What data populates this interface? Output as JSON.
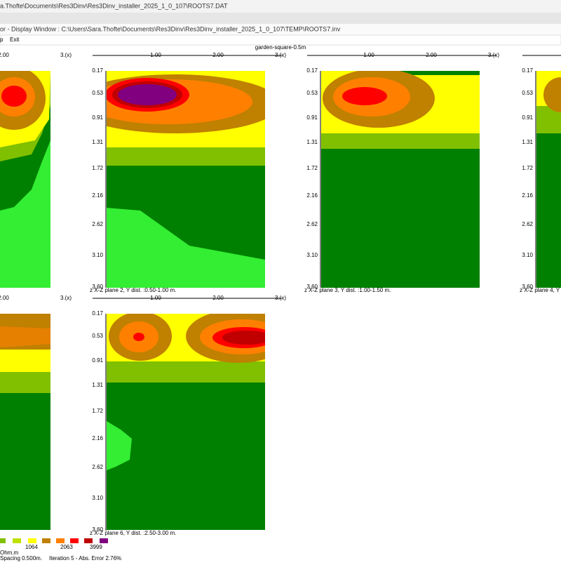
{
  "window": {
    "file_title": "a.Thofte\\Documents\\Res3Dinv\\Res3Dinv_installer_2025_1_0_107\\ROOTS7.DAT",
    "display_title": "or - Display Window : C:\\Users\\Sara.Thofte\\Documents\\Res3Dinv\\Res3Dinv_installer_2025_1_0_107\\TEMP\\ROOTS7.inv",
    "menu": [
      "p",
      "Exit"
    ]
  },
  "figure": {
    "title": "garden-square-0.5m",
    "depth_ticks": [
      "0.17",
      "0.53",
      "0.91",
      "1.31",
      "1.72",
      "2.16",
      "2.62",
      "3.10",
      "3.60"
    ],
    "panels": [
      {
        "x_ticks": [
          "2.00",
          "3.(x)"
        ]
      },
      {
        "x_ticks": [
          "1.00",
          "2.00",
          "3.(x)"
        ],
        "caption": "z X-Z plane 2, Y dist. :0.50-1.00 m."
      },
      {
        "x_ticks": [
          "1.00",
          "2.00",
          "3.(x)"
        ],
        "caption": "z X-Z plane 3, Y dist. :1.00-1.50 m."
      },
      {
        "caption": "z X-Z plane 4, Y"
      },
      {
        "x_ticks": [
          "2.00",
          "3.(x)"
        ]
      },
      {
        "x_ticks": [
          "1.00",
          "2.00",
          "3.(x)"
        ],
        "caption": "z X-Z plane 6, Y dist. :2.50-3.00 m."
      }
    ]
  },
  "legend": {
    "labels": [
      "1064",
      "2063",
      "3999"
    ],
    "unit": "Ohm.m"
  },
  "status": {
    "spacing": "Spacing 0.500m.",
    "iteration": "Iteration 5 - Abs. Error 2.76%"
  }
}
